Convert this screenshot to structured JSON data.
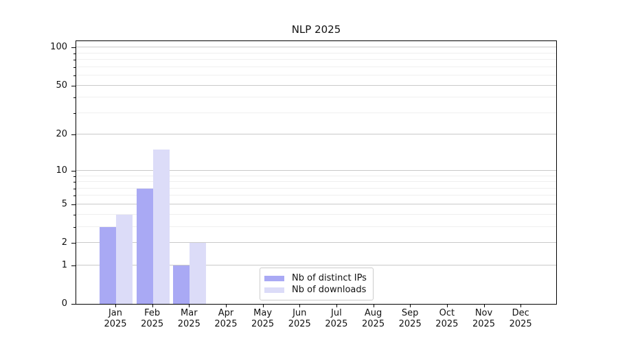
{
  "chart_data": {
    "type": "bar",
    "title": "NLP 2025",
    "categories": [
      "Jan",
      "Feb",
      "Mar",
      "Apr",
      "May",
      "Jun",
      "Jul",
      "Aug",
      "Sep",
      "Oct",
      "Nov",
      "Dec"
    ],
    "category_year": "2025",
    "series": [
      {
        "name": "Nb of distinct IPs",
        "color": "#a9a9f4",
        "values": [
          3,
          7,
          1,
          0,
          0,
          0,
          0,
          0,
          0,
          0,
          0,
          0
        ]
      },
      {
        "name": "Nb of downloads",
        "color": "#dcdcf8",
        "values": [
          4,
          15,
          2,
          0,
          0,
          0,
          0,
          0,
          0,
          0,
          0,
          0
        ]
      }
    ],
    "y_scale": "log1p",
    "y_ticks": [
      0,
      1,
      2,
      5,
      10,
      20,
      50,
      100
    ],
    "y_minor_gridlines": [
      3,
      4,
      6,
      7,
      8,
      9,
      30,
      40,
      60,
      70,
      80,
      90
    ],
    "ylim": [
      0,
      113
    ],
    "xlabel": "",
    "ylabel": "",
    "grid": true,
    "legend_position": "lower center",
    "colors": {
      "major_grid": "#c9c9c9",
      "minor_grid": "#efefef",
      "spine": "#000000",
      "text": "#111111",
      "background": "#ffffff"
    }
  }
}
